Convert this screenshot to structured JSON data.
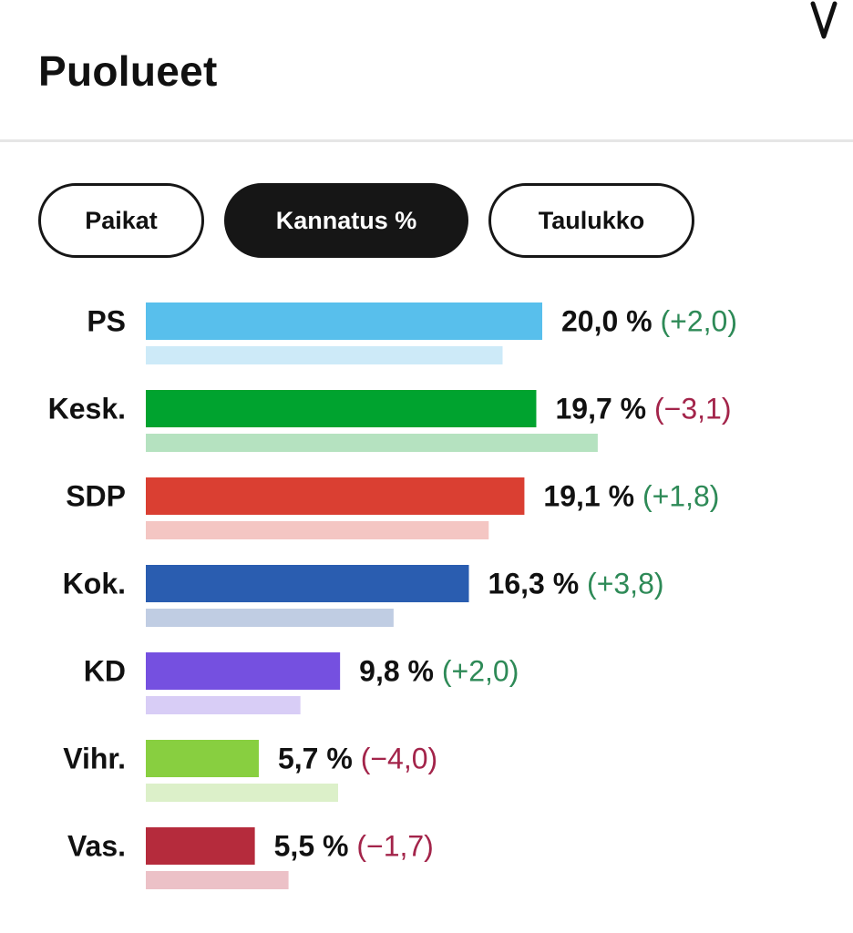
{
  "header": {
    "title": "Puolueet"
  },
  "tabs": [
    {
      "label": "Paikat",
      "active": false
    },
    {
      "label": "Kannatus %",
      "active": true
    },
    {
      "label": "Taulukko",
      "active": false
    }
  ],
  "chart_data": {
    "type": "bar",
    "orientation": "horizontal",
    "categories": [
      "PS",
      "Kesk.",
      "SDP",
      "Kok.",
      "KD",
      "Vihr.",
      "Vas."
    ],
    "series": [
      {
        "values": [
          20.0,
          19.7,
          19.1,
          16.3,
          9.8,
          5.7,
          5.5
        ],
        "value_labels": [
          "20,0 %",
          "19,7 %",
          "19,1 %",
          "16,3 %",
          "9,8 %",
          "5,7 %",
          "5,5 %"
        ]
      },
      {
        "values": [
          18.0,
          22.8,
          17.3,
          12.5,
          7.8,
          9.7,
          7.2
        ]
      }
    ],
    "changes": [
      "(+2,0)",
      "(−3,1)",
      "(+1,8)",
      "(+3,8)",
      "(+2,0)",
      "(−4,0)",
      "(−1,7)"
    ],
    "change_direction": [
      "up",
      "down",
      "up",
      "up",
      "up",
      "down",
      "down"
    ],
    "colors": [
      "#58bfec",
      "#00a32f",
      "#da3f32",
      "#2a5db0",
      "#7550e0",
      "#88cf40",
      "#b52b3c"
    ],
    "previous_colors": [
      "#cdeaf8",
      "#b5e2c0",
      "#f4c6c3",
      "#c0cde3",
      "#d8cdf6",
      "#dcf0c9",
      "#ecc1c7"
    ],
    "change_colors": {
      "up": "#2e8a57",
      "down": "#a3244a"
    },
    "title": "",
    "xlabel": "",
    "ylabel": "",
    "grid": false,
    "legend": "none"
  }
}
